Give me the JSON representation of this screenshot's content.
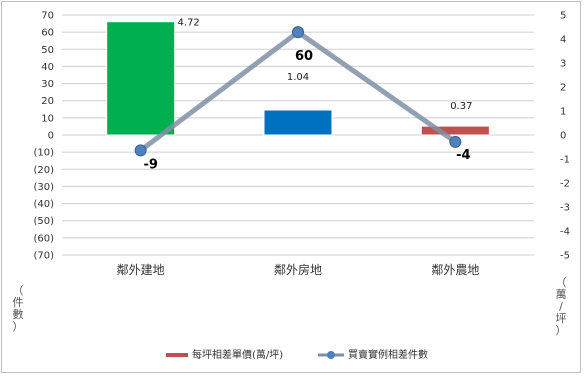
{
  "chart_data": {
    "type": "bar",
    "categories": [
      "鄰外建地",
      "鄰外房地",
      "鄰外農地"
    ],
    "series": [
      {
        "name": "每坪相差單價(萬/坪)",
        "kind": "bar",
        "axis": "right",
        "values": [
          4.72,
          1.04,
          0.37
        ],
        "value_labels": [
          "4.72",
          "1.04",
          "0.37"
        ],
        "colors": [
          "#00b050",
          "#0070c0",
          "#c0504d"
        ]
      },
      {
        "name": "買賣實例相差件數",
        "kind": "line",
        "axis": "left",
        "values": [
          -9,
          60,
          -4
        ],
        "value_labels": [
          "-9",
          "60",
          "-4"
        ],
        "color": "#7f8fa6",
        "marker_color": "#4f81bd"
      }
    ],
    "y_left": {
      "ylim": [
        -70,
        70
      ],
      "step": 10,
      "tick_labels": [
        "70",
        "60",
        "50",
        "40",
        "30",
        "20",
        "10",
        "0",
        "(10)",
        "(20)",
        "(30)",
        "(40)",
        "(50)",
        "(60)",
        "(70)"
      ],
      "unit_label": [
        "（",
        "件",
        "數",
        "）"
      ]
    },
    "y_right": {
      "ylim": [
        -5,
        5
      ],
      "step": 1,
      "tick_labels": [
        "5",
        "4",
        "3",
        "2",
        "1",
        "0",
        "-1",
        "-2",
        "-3",
        "-4",
        "-5"
      ],
      "unit_label": [
        "（",
        "萬",
        "/",
        "坪",
        "）"
      ]
    },
    "grid": true,
    "legend_position": "bottom"
  }
}
